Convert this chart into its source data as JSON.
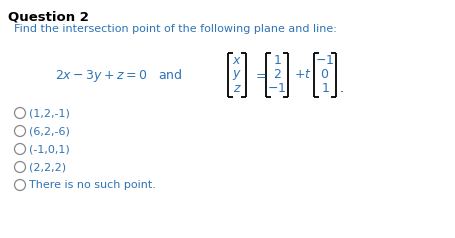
{
  "title": "Question 2",
  "title_color": "#000000",
  "subtitle": "Find the intersection point of the following plane and line:",
  "subtitle_color": "#2e74b5",
  "equation_color": "#2e74b5",
  "bracket_color": "#000000",
  "options": [
    "(1,2,-1)",
    "(6,2,-6)",
    "(-1,0,1)",
    "(2,2,2)",
    "There is no such point."
  ],
  "option_color": "#2e74b5",
  "option_last_color": "#000000",
  "bg_color": "#ffffff",
  "title_fontsize": 9.5,
  "subtitle_fontsize": 8.0,
  "eq_fontsize": 9.0,
  "option_fontsize": 8.0
}
